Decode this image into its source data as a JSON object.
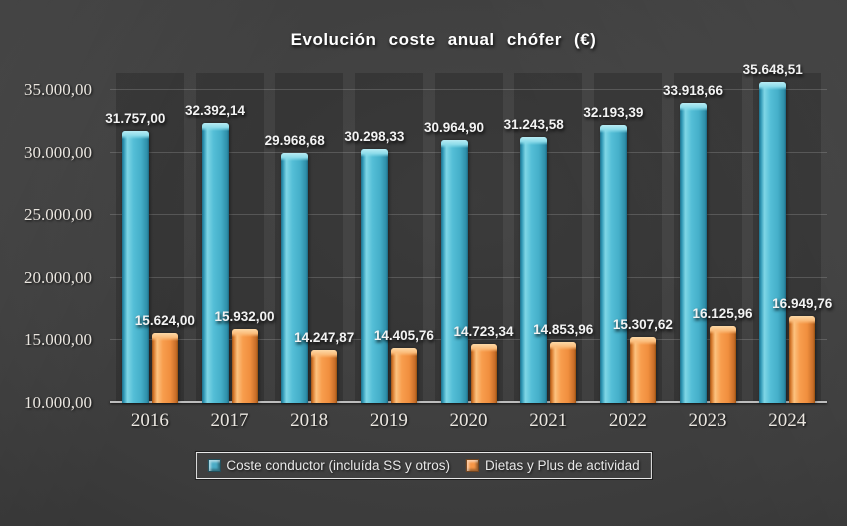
{
  "title": "Evolución  coste  anual  chófer  (€)",
  "colors": {
    "background": "#3c3c3c",
    "series_blue": "#4bacc6",
    "series_orange": "#f79646",
    "text": "#e8e8e8",
    "gridline": "rgba(255,255,255,0.16)"
  },
  "chart_data": {
    "type": "bar",
    "title": "Evolución  coste  anual  chófer  (€)",
    "categories": [
      "2016",
      "2017",
      "2018",
      "2019",
      "2020",
      "2021",
      "2022",
      "2023",
      "2024"
    ],
    "series": [
      {
        "name": "Coste conductor (incluída SS y otros)",
        "color": "#4bacc6",
        "values": [
          31757.0,
          32392.14,
          29968.68,
          30298.33,
          30964.9,
          31243.58,
          32193.39,
          33918.66,
          35648.51
        ],
        "labels": [
          "31.757,00",
          "32.392,14",
          "29.968,68",
          "30.298,33",
          "30.964,90",
          "31.243,58",
          "32.193,39",
          "33.918,66",
          "35.648,51"
        ]
      },
      {
        "name": "Dietas y Plus de actividad",
        "color": "#f79646",
        "values": [
          15624.0,
          15932.0,
          14247.87,
          14405.76,
          14723.34,
          14853.96,
          15307.62,
          16125.96,
          16949.76
        ],
        "labels": [
          "15.624,00",
          "15.932,00",
          "14.247,87",
          "14.405,76",
          "14.723,34",
          "14.853,96",
          "15.307,62",
          "16.125,96",
          "16.949,76"
        ]
      }
    ],
    "xlabel": "",
    "ylabel": "",
    "ylim": [
      10000,
      36350
    ],
    "yticks": [
      {
        "value": 10000,
        "label": "10.000,00"
      },
      {
        "value": 15000,
        "label": "15.000,00"
      },
      {
        "value": 20000,
        "label": "20.000,00"
      },
      {
        "value": 25000,
        "label": "25.000,00"
      },
      {
        "value": 30000,
        "label": "30.000,00"
      },
      {
        "value": 35000,
        "label": "35.000,00"
      }
    ],
    "grid": true,
    "legend_position": "bottom"
  }
}
